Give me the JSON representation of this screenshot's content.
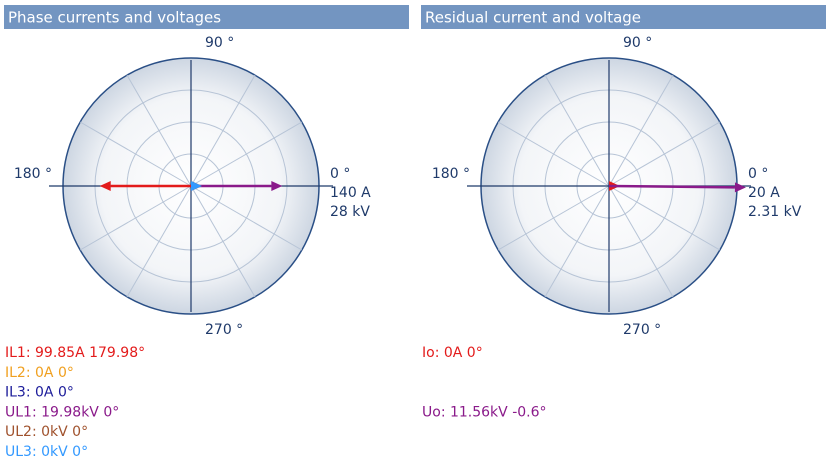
{
  "panels": [
    {
      "title": "Phase currents and voltages",
      "angle_labels": [
        {
          "value": 90,
          "label": "90 °"
        },
        {
          "value": 180,
          "label": "180 °"
        },
        {
          "value": 0,
          "label": "0 °"
        },
        {
          "value": 270,
          "label": "270 °"
        }
      ],
      "scale": {
        "current": {
          "value": 140,
          "label": "140 A"
        },
        "voltage": {
          "value": 28,
          "label": "28 kV"
        }
      },
      "phasors": [
        {
          "label": "IL1: 99.85A 179.98°",
          "quantity": "current",
          "magnitude": 99.85,
          "angle": 179.98,
          "color": "#e31b1b"
        },
        {
          "label": "IL2: 0A 0°",
          "quantity": "current",
          "magnitude": 0,
          "angle": 0,
          "color": "#f0a020"
        },
        {
          "label": "IL3: 0A 0°",
          "quantity": "current",
          "magnitude": 0,
          "angle": 0,
          "color": "#1c1c9a"
        },
        {
          "label": "UL1: 19.98kV 0°",
          "quantity": "voltage",
          "magnitude": 19.98,
          "angle": 0,
          "color": "#8a1a8a"
        },
        {
          "label": "UL2: 0kV 0°",
          "quantity": "voltage",
          "magnitude": 0,
          "angle": 0,
          "color": "#a0522d"
        },
        {
          "label": "UL3: 0kV 0°",
          "quantity": "voltage",
          "magnitude": 0,
          "angle": 0,
          "color": "#3399ff"
        }
      ]
    },
    {
      "title": "Residual current and voltage",
      "angle_labels": [
        {
          "value": 90,
          "label": "90 °"
        },
        {
          "value": 180,
          "label": "180 °"
        },
        {
          "value": 0,
          "label": "0 °"
        },
        {
          "value": 270,
          "label": "270 °"
        }
      ],
      "scale": {
        "current": {
          "value": 20,
          "label": "20 A"
        },
        "voltage": {
          "value": 2.31,
          "label": "2.31 kV"
        }
      },
      "phasors": [
        {
          "label": "Io: 0A 0°",
          "quantity": "current",
          "magnitude": 0,
          "angle": 0,
          "color": "#e31b1b"
        },
        {
          "label": "Uo: 11.56kV -0.6°",
          "quantity": "voltage",
          "magnitude": 11.56,
          "angle": -0.6,
          "color": "#8a1a8a"
        }
      ]
    }
  ]
}
